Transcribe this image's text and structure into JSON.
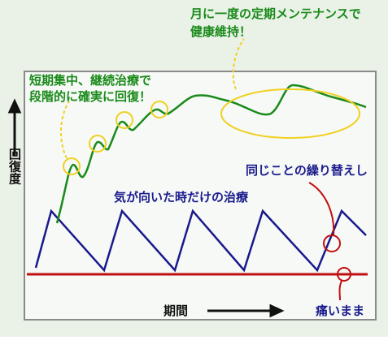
{
  "annotations": {
    "maintenance": {
      "line1": "月に一度の定期メンテナンスで",
      "line2": "健康維持！"
    },
    "intensive": {
      "line1": "短期集中、継続治療で",
      "line2": "段階的に確実に回復！"
    },
    "repeat": "同じことの繰り替えし",
    "occasional": "気が向いた時だけの治療",
    "still_pain": "痛いまま"
  },
  "axes": {
    "y_label": "回復度",
    "x_label": "期間"
  }
}
